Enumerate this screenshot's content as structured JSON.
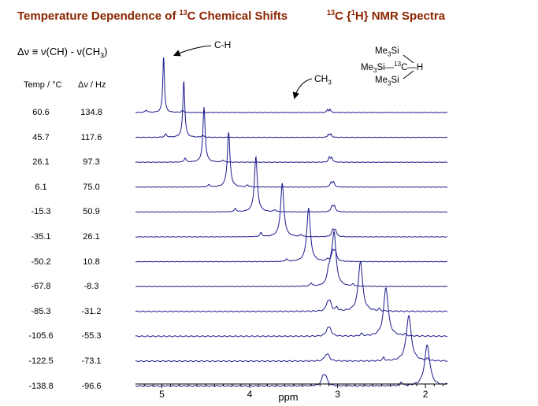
{
  "title_left": {
    "pre": "Temperature Dependence of ",
    "sup": "13",
    "post": "C Chemical Shifts"
  },
  "title_right": {
    "sup1": "13",
    "mid": "C {",
    "sup2": "1",
    "post": "H} NMR Spectra"
  },
  "equation": {
    "lhs": "Δν ≡ ν(CH) - ν(CH",
    "sub": "3",
    "close": ")"
  },
  "columns": {
    "temp": "Temp / °C",
    "dnu": "Δν / Hz"
  },
  "structure": {
    "l1_pre": "Me",
    "l1_sub": "3",
    "l1_post": "Si",
    "l2_pre": "Me",
    "l2_sub": "3",
    "l2_mid": "Si—",
    "l2_sup": "13",
    "l2_post": "C—H",
    "l3_pre": "Me",
    "l3_sub": "3",
    "l3_post": "Si"
  },
  "annotations": {
    "ch": "C-H",
    "ch3_pre": "CH",
    "ch3_sub": "3"
  },
  "colors": {
    "trace": "#1a1a8c",
    "title": "#8b2500",
    "axis": "#000000"
  },
  "chart_data": {
    "type": "line",
    "xlabel": "ppm",
    "xlim": [
      5.3,
      1.75
    ],
    "x_ticks": [
      5,
      4,
      3,
      2
    ],
    "rows": [
      {
        "temp": "60.6",
        "dnu": "134.8",
        "ch_ppm": 4.98,
        "ch3_ppm": 3.1,
        "ch_h": 72,
        "ch3_h": 4
      },
      {
        "temp": "45.7",
        "dnu": "117.6",
        "ch_ppm": 4.75,
        "ch3_ppm": 3.09,
        "ch_h": 72,
        "ch3_h": 4
      },
      {
        "temp": "26.1",
        "dnu": "97.3",
        "ch_ppm": 4.52,
        "ch3_ppm": 3.08,
        "ch_h": 70,
        "ch3_h": 6
      },
      {
        "temp": "6.1",
        "dnu": "75.0",
        "ch_ppm": 4.24,
        "ch3_ppm": 3.06,
        "ch_h": 70,
        "ch3_h": 6
      },
      {
        "temp": "-15.3",
        "dnu": "50.9",
        "ch_ppm": 3.93,
        "ch3_ppm": 3.05,
        "ch_h": 70,
        "ch3_h": 7
      },
      {
        "temp": "-35.1",
        "dnu": "26.1",
        "ch_ppm": 3.63,
        "ch3_ppm": 3.04,
        "ch_h": 68,
        "ch3_h": 8
      },
      {
        "temp": "-50.2",
        "dnu": "10.8",
        "ch_ppm": 3.33,
        "ch3_ppm": 3.04,
        "ch_h": 68,
        "ch3_h": 12
      },
      {
        "temp": "-67.8",
        "dnu": "-8.3",
        "ch_ppm": 3.04,
        "ch3_ppm": 3.09,
        "ch_h": 66,
        "ch3_h": 14
      },
      {
        "temp": "-85.3",
        "dnu": "-31.2",
        "ch_ppm": 2.74,
        "ch3_ppm": 3.1,
        "ch_h": 64,
        "ch3_h": 10
      },
      {
        "temp": "-105.6",
        "dnu": "-55.3",
        "ch_ppm": 2.45,
        "ch3_ppm": 3.1,
        "ch_h": 62,
        "ch3_h": 8
      },
      {
        "temp": "-122.5",
        "dnu": "-73.1",
        "ch_ppm": 2.19,
        "ch3_ppm": 3.12,
        "ch_h": 58,
        "ch3_h": 6
      },
      {
        "temp": "-138.8",
        "dnu": "-96.6",
        "ch_ppm": 1.98,
        "ch3_ppm": 3.15,
        "ch_h": 52,
        "ch3_h": 10
      }
    ]
  }
}
